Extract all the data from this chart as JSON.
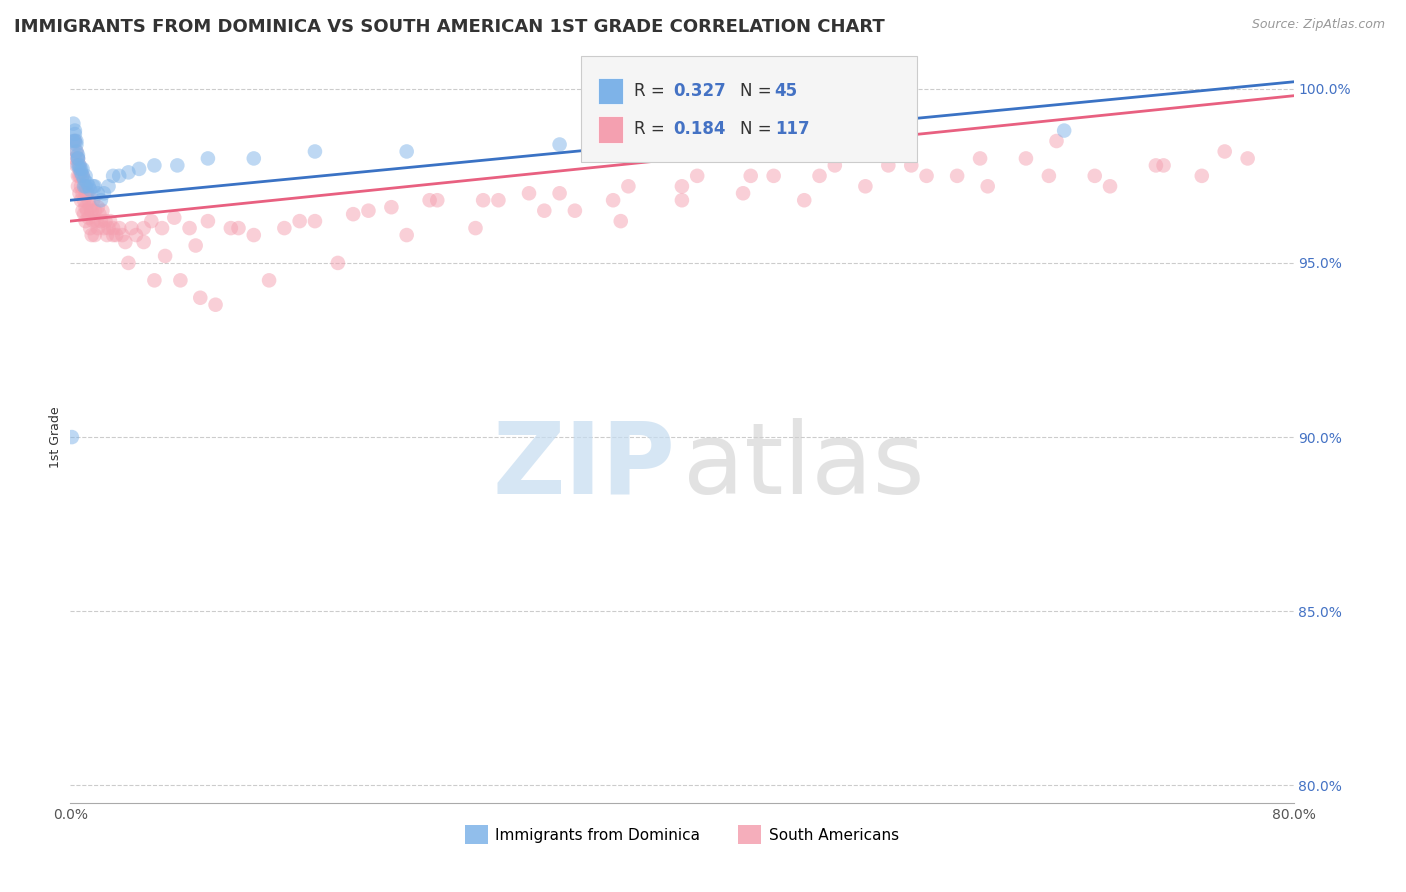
{
  "title": "IMMIGRANTS FROM DOMINICA VS SOUTH AMERICAN 1ST GRADE CORRELATION CHART",
  "source": "Source: ZipAtlas.com",
  "ylabel": "1st Grade",
  "xlim": [
    0.0,
    0.8
  ],
  "ylim": [
    0.795,
    1.005
  ],
  "xticks": [
    0.0,
    0.1,
    0.2,
    0.3,
    0.4,
    0.5,
    0.6,
    0.7,
    0.8
  ],
  "xticklabels": [
    "0.0%",
    "",
    "",
    "",
    "",
    "",
    "",
    "",
    "80.0%"
  ],
  "yticks_right": [
    1.0,
    0.95,
    0.9,
    0.85,
    0.8
  ],
  "yticklabels_right": [
    "100.0%",
    "95.0%",
    "90.0%",
    "85.0%",
    "80.0%"
  ],
  "blue_R": 0.327,
  "blue_N": 45,
  "pink_R": 0.184,
  "pink_N": 117,
  "blue_color": "#7EB3E8",
  "pink_color": "#F4A0B0",
  "blue_line_color": "#3A72C4",
  "pink_line_color": "#E86080",
  "legend_label_blue": "Immigrants from Dominica",
  "legend_label_pink": "South Americans",
  "blue_scatter_x": [
    0.001,
    0.002,
    0.002,
    0.003,
    0.003,
    0.003,
    0.004,
    0.004,
    0.004,
    0.005,
    0.005,
    0.005,
    0.005,
    0.006,
    0.006,
    0.007,
    0.007,
    0.008,
    0.008,
    0.009,
    0.009,
    0.01,
    0.01,
    0.011,
    0.012,
    0.013,
    0.015,
    0.016,
    0.018,
    0.02,
    0.022,
    0.025,
    0.028,
    0.032,
    0.038,
    0.045,
    0.055,
    0.07,
    0.09,
    0.12,
    0.16,
    0.22,
    0.32,
    0.48,
    0.65
  ],
  "blue_scatter_y": [
    0.9,
    0.99,
    0.985,
    0.988,
    0.987,
    0.985,
    0.985,
    0.984,
    0.982,
    0.981,
    0.98,
    0.98,
    0.978,
    0.978,
    0.977,
    0.977,
    0.976,
    0.977,
    0.975,
    0.974,
    0.972,
    0.972,
    0.975,
    0.973,
    0.972,
    0.971,
    0.972,
    0.972,
    0.97,
    0.968,
    0.97,
    0.972,
    0.975,
    0.975,
    0.976,
    0.977,
    0.978,
    0.978,
    0.98,
    0.98,
    0.982,
    0.982,
    0.984,
    0.985,
    0.988
  ],
  "pink_scatter_x": [
    0.003,
    0.003,
    0.004,
    0.004,
    0.005,
    0.005,
    0.005,
    0.006,
    0.006,
    0.006,
    0.007,
    0.007,
    0.007,
    0.008,
    0.008,
    0.008,
    0.009,
    0.009,
    0.009,
    0.01,
    0.01,
    0.01,
    0.011,
    0.011,
    0.012,
    0.012,
    0.013,
    0.013,
    0.014,
    0.014,
    0.015,
    0.015,
    0.016,
    0.016,
    0.017,
    0.018,
    0.018,
    0.019,
    0.02,
    0.021,
    0.022,
    0.023,
    0.024,
    0.025,
    0.026,
    0.028,
    0.03,
    0.032,
    0.034,
    0.036,
    0.04,
    0.043,
    0.048,
    0.053,
    0.06,
    0.068,
    0.078,
    0.09,
    0.105,
    0.12,
    0.14,
    0.16,
    0.185,
    0.21,
    0.24,
    0.27,
    0.3,
    0.33,
    0.36,
    0.4,
    0.44,
    0.48,
    0.52,
    0.56,
    0.6,
    0.64,
    0.68,
    0.71,
    0.74,
    0.77,
    0.095,
    0.13,
    0.175,
    0.22,
    0.265,
    0.31,
    0.355,
    0.4,
    0.445,
    0.49,
    0.535,
    0.58,
    0.625,
    0.67,
    0.715,
    0.755,
    0.085,
    0.055,
    0.072,
    0.038,
    0.028,
    0.062,
    0.048,
    0.082,
    0.11,
    0.15,
    0.195,
    0.235,
    0.28,
    0.32,
    0.365,
    0.41,
    0.46,
    0.5,
    0.55,
    0.595,
    0.645
  ],
  "pink_scatter_y": [
    0.985,
    0.98,
    0.982,
    0.978,
    0.98,
    0.975,
    0.972,
    0.978,
    0.975,
    0.97,
    0.975,
    0.972,
    0.968,
    0.975,
    0.97,
    0.965,
    0.972,
    0.968,
    0.964,
    0.97,
    0.966,
    0.962,
    0.97,
    0.965,
    0.968,
    0.963,
    0.966,
    0.96,
    0.965,
    0.958,
    0.968,
    0.962,
    0.965,
    0.958,
    0.962,
    0.966,
    0.96,
    0.964,
    0.962,
    0.965,
    0.96,
    0.962,
    0.958,
    0.96,
    0.962,
    0.96,
    0.958,
    0.96,
    0.958,
    0.956,
    0.96,
    0.958,
    0.96,
    0.962,
    0.96,
    0.963,
    0.96,
    0.962,
    0.96,
    0.958,
    0.96,
    0.962,
    0.964,
    0.966,
    0.968,
    0.968,
    0.97,
    0.965,
    0.962,
    0.968,
    0.97,
    0.968,
    0.972,
    0.975,
    0.972,
    0.975,
    0.972,
    0.978,
    0.975,
    0.98,
    0.938,
    0.945,
    0.95,
    0.958,
    0.96,
    0.965,
    0.968,
    0.972,
    0.975,
    0.975,
    0.978,
    0.975,
    0.98,
    0.975,
    0.978,
    0.982,
    0.94,
    0.945,
    0.945,
    0.95,
    0.958,
    0.952,
    0.956,
    0.955,
    0.96,
    0.962,
    0.965,
    0.968,
    0.968,
    0.97,
    0.972,
    0.975,
    0.975,
    0.978,
    0.978,
    0.98,
    0.985
  ],
  "title_fontsize": 13,
  "axis_label_fontsize": 9,
  "tick_fontsize": 10,
  "legend_fontsize": 12,
  "marker_size": 110,
  "marker_alpha": 0.5,
  "background_color": "#FFFFFF",
  "grid_color": "#CCCCCC",
  "blue_line_x0": 0.0,
  "blue_line_y0": 0.968,
  "blue_line_x1": 0.8,
  "blue_line_y1": 1.002,
  "pink_line_x0": 0.0,
  "pink_line_y0": 0.962,
  "pink_line_x1": 0.8,
  "pink_line_y1": 0.998
}
